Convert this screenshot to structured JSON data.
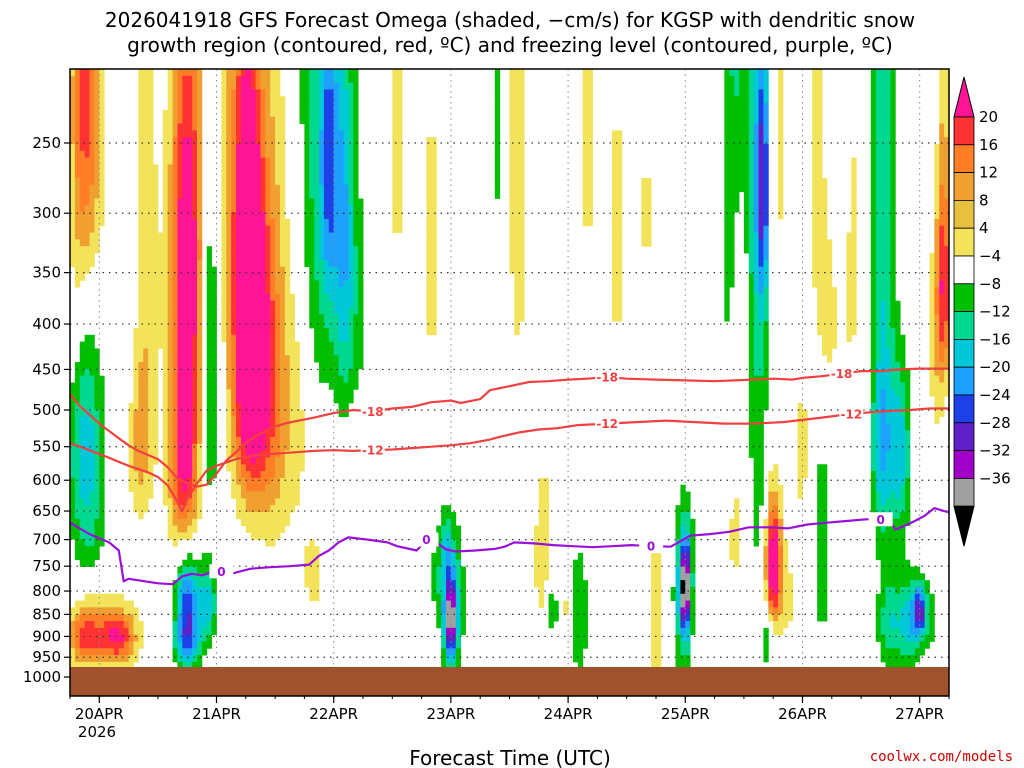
{
  "chart_data": {
    "type": "heatmap",
    "title_line1": "2026041918 GFS Forecast Omega (shaded, −cm/s) for KGSP with dendritic snow",
    "title_line2": "growth region (contoured, red, ºC) and freezing level (contoured, purple, ºC)",
    "xlabel": "Forecast Time (UTC)",
    "credit": "coolwx.com/models",
    "x_range_hours": [
      0,
      180
    ],
    "x_ticks": [
      {
        "label": "20APR",
        "hour": 6
      },
      {
        "label": "21APR",
        "hour": 30
      },
      {
        "label": "22APR",
        "hour": 54
      },
      {
        "label": "23APR",
        "hour": 78
      },
      {
        "label": "24APR",
        "hour": 102
      },
      {
        "label": "25APR",
        "hour": 126
      },
      {
        "label": "26APR",
        "hour": 150
      },
      {
        "label": "27APR",
        "hour": 174
      }
    ],
    "x_year_label": "2026",
    "y_ticks": [
      "250",
      "300",
      "350",
      "400",
      "450",
      "500",
      "550",
      "600",
      "650",
      "700",
      "750",
      "800",
      "850",
      "900",
      "950",
      "1000"
    ],
    "y_range_hpa": [
      200,
      1010
    ],
    "colorbar_labels": [
      "20",
      "16",
      "12",
      "8",
      "4",
      "−4",
      "−8",
      "−12",
      "−16",
      "−20",
      "−24",
      "−28",
      "−32",
      "−36"
    ],
    "colorbar_colors": [
      "#ff1493",
      "#ff3333",
      "#ff7f27",
      "#f0a030",
      "#e8c040",
      "#f2e35a",
      "#ffffff",
      "#00bf00",
      "#00d890",
      "#00c8d8",
      "#1ea0ff",
      "#1e40e8",
      "#6020c8",
      "#a000c8",
      "#a0a0a0",
      "#000000"
    ],
    "contour_labels": {
      "t18": "-18",
      "t12": "-12",
      "t0": "0"
    },
    "contour_colors": {
      "dgz": "#f04040",
      "freezing": "#9a10d8"
    },
    "contours": {
      "dgz_minus18": [
        [
          0,
          480
        ],
        [
          2,
          495
        ],
        [
          4,
          506
        ],
        [
          6,
          518
        ],
        [
          8,
          528
        ],
        [
          10,
          538
        ],
        [
          12,
          548
        ],
        [
          14,
          556
        ],
        [
          16,
          562
        ],
        [
          18,
          568
        ],
        [
          20,
          580
        ],
        [
          22,
          597
        ],
        [
          24,
          605
        ],
        [
          26,
          610
        ],
        [
          28,
          607
        ],
        [
          30,
          590
        ],
        [
          32,
          570
        ],
        [
          34,
          558
        ],
        [
          36,
          545
        ],
        [
          38,
          535
        ],
        [
          40,
          528
        ],
        [
          42,
          522
        ],
        [
          44,
          518
        ],
        [
          46,
          515
        ],
        [
          50,
          510
        ],
        [
          54,
          504
        ],
        [
          58,
          500
        ],
        [
          62,
          502
        ],
        [
          66,
          498
        ],
        [
          70,
          496
        ],
        [
          74,
          490
        ],
        [
          78,
          488
        ],
        [
          80,
          491
        ],
        [
          84,
          486
        ],
        [
          86,
          475
        ],
        [
          90,
          470
        ],
        [
          94,
          465
        ],
        [
          98,
          464
        ],
        [
          102,
          462
        ],
        [
          106,
          461
        ],
        [
          110,
          459
        ],
        [
          114,
          461
        ],
        [
          120,
          462
        ],
        [
          126,
          463
        ],
        [
          132,
          464
        ],
        [
          136,
          463
        ],
        [
          140,
          462
        ],
        [
          144,
          461
        ],
        [
          148,
          462
        ],
        [
          150,
          460
        ],
        [
          154,
          458
        ],
        [
          158,
          455
        ],
        [
          162,
          452
        ],
        [
          166,
          452
        ],
        [
          170,
          450
        ],
        [
          174,
          449
        ],
        [
          178,
          449
        ],
        [
          180,
          449
        ]
      ],
      "dgz_minus12": [
        [
          0,
          545
        ],
        [
          4,
          555
        ],
        [
          8,
          566
        ],
        [
          12,
          578
        ],
        [
          16,
          588
        ],
        [
          18,
          595
        ],
        [
          20,
          608
        ],
        [
          22,
          635
        ],
        [
          23,
          650
        ],
        [
          24,
          630
        ],
        [
          26,
          605
        ],
        [
          28,
          585
        ],
        [
          30,
          578
        ],
        [
          34,
          568
        ],
        [
          38,
          562
        ],
        [
          42,
          560
        ],
        [
          46,
          558
        ],
        [
          50,
          556
        ],
        [
          54,
          555
        ],
        [
          58,
          556
        ],
        [
          62,
          555
        ],
        [
          66,
          554
        ],
        [
          70,
          552
        ],
        [
          74,
          550
        ],
        [
          78,
          548
        ],
        [
          82,
          545
        ],
        [
          86,
          540
        ],
        [
          88,
          536
        ],
        [
          92,
          530
        ],
        [
          96,
          526
        ],
        [
          100,
          524
        ],
        [
          104,
          520
        ],
        [
          110,
          518
        ],
        [
          116,
          516
        ],
        [
          122,
          514
        ],
        [
          128,
          516
        ],
        [
          134,
          518
        ],
        [
          140,
          518
        ],
        [
          146,
          516
        ],
        [
          150,
          513
        ],
        [
          154,
          510
        ],
        [
          160,
          505
        ],
        [
          166,
          502
        ],
        [
          172,
          500
        ],
        [
          176,
          498
        ],
        [
          180,
          498
        ]
      ],
      "freezing_0": [
        [
          0,
          670
        ],
        [
          4,
          690
        ],
        [
          8,
          705
        ],
        [
          10,
          720
        ],
        [
          11,
          780
        ],
        [
          12,
          775
        ],
        [
          14,
          778
        ],
        [
          18,
          784
        ],
        [
          21,
          786
        ],
        [
          23,
          770
        ],
        [
          25,
          765
        ],
        [
          27,
          768
        ],
        [
          29,
          762
        ],
        [
          31,
          760
        ],
        [
          33,
          765
        ],
        [
          37,
          755
        ],
        [
          41,
          752
        ],
        [
          45,
          750
        ],
        [
          49,
          747
        ],
        [
          51,
          730
        ],
        [
          53,
          720
        ],
        [
          55,
          705
        ],
        [
          57,
          696
        ],
        [
          61,
          700
        ],
        [
          65,
          705
        ],
        [
          67,
          712
        ],
        [
          71,
          720
        ],
        [
          73,
          700
        ],
        [
          75,
          705
        ],
        [
          77,
          718
        ],
        [
          79,
          722
        ],
        [
          83,
          720
        ],
        [
          87,
          717
        ],
        [
          89,
          713
        ],
        [
          91,
          705
        ],
        [
          95,
          707
        ],
        [
          99,
          710
        ],
        [
          103,
          712
        ],
        [
          107,
          714
        ],
        [
          111,
          712
        ],
        [
          115,
          710
        ],
        [
          119,
          712
        ],
        [
          123,
          713
        ],
        [
          125,
          703
        ],
        [
          127,
          693
        ],
        [
          131,
          690
        ],
        [
          135,
          686
        ],
        [
          139,
          678
        ],
        [
          143,
          678
        ],
        [
          147,
          680
        ],
        [
          151,
          673
        ],
        [
          155,
          670
        ],
        [
          159,
          667
        ],
        [
          163,
          664
        ],
        [
          166,
          664
        ],
        [
          168,
          668
        ],
        [
          169,
          682
        ],
        [
          171,
          675
        ],
        [
          173,
          667
        ],
        [
          175,
          658
        ],
        [
          177,
          645
        ],
        [
          179,
          650
        ],
        [
          180,
          652
        ]
      ]
    },
    "omega_blobs": [
      {
        "t": 3,
        "p": 200,
        "wt": 1.6,
        "hp": 120,
        "v": 14
      },
      {
        "t": 5,
        "p": 230,
        "wt": 2.0,
        "hp": 110,
        "v": 8
      },
      {
        "t": 1,
        "p": 330,
        "wt": 1.2,
        "hp": 140,
        "v": 6
      },
      {
        "t": 3,
        "p": 480,
        "wt": 2.6,
        "hp": 120,
        "v": -11
      },
      {
        "t": 3,
        "p": 580,
        "wt": 2.6,
        "hp": 60,
        "v": -7
      },
      {
        "t": 4,
        "p": 700,
        "wt": 2.4,
        "hp": 60,
        "v": -6
      },
      {
        "t": 3,
        "p": 905,
        "wt": 2.4,
        "hp": 50,
        "v": 13
      },
      {
        "t": 10,
        "p": 905,
        "wt": 2.6,
        "hp": 45,
        "v": 17
      },
      {
        "t": 6,
        "p": 880,
        "wt": 4.0,
        "hp": 60,
        "v": 7
      },
      {
        "t": 12,
        "p": 330,
        "wt": 1.3,
        "hp": 120,
        "v": -6
      },
      {
        "t": 15,
        "p": 380,
        "wt": 2.2,
        "hp": 200,
        "v": 8
      },
      {
        "t": 14,
        "p": 550,
        "wt": 1.8,
        "hp": 60,
        "v": 6
      },
      {
        "t": 24,
        "p": 300,
        "wt": 2.4,
        "hp": 120,
        "v": 16
      },
      {
        "t": 24,
        "p": 470,
        "wt": 2.4,
        "hp": 160,
        "v": 16
      },
      {
        "t": 23,
        "p": 600,
        "wt": 2.0,
        "hp": 80,
        "v": 10
      },
      {
        "t": 24,
        "p": 830,
        "wt": 1.6,
        "hp": 80,
        "v": -24
      },
      {
        "t": 24,
        "p": 920,
        "wt": 2.0,
        "hp": 40,
        "v": -10
      },
      {
        "t": 28,
        "p": 830,
        "wt": 1.4,
        "hp": 60,
        "v": -14
      },
      {
        "t": 28.5,
        "p": 420,
        "wt": 1.4,
        "hp": 160,
        "v": -12
      },
      {
        "t": 31,
        "p": 220,
        "wt": 2.2,
        "hp": 120,
        "v": 4.5
      },
      {
        "t": 36,
        "p": 260,
        "wt": 2.0,
        "hp": 100,
        "v": 12
      },
      {
        "t": 37,
        "p": 350,
        "wt": 2.6,
        "hp": 120,
        "v": 20
      },
      {
        "t": 37,
        "p": 480,
        "wt": 2.6,
        "hp": 100,
        "v": 16
      },
      {
        "t": 40,
        "p": 520,
        "wt": 4.0,
        "hp": 120,
        "v": 8
      },
      {
        "t": 42,
        "p": 380,
        "wt": 2.0,
        "hp": 200,
        "v": 6
      },
      {
        "t": 47,
        "p": 480,
        "wt": 2.0,
        "hp": 160,
        "v": 5
      },
      {
        "t": 50,
        "p": 260,
        "wt": 2.6,
        "hp": 180,
        "v": -9
      },
      {
        "t": 53,
        "p": 260,
        "wt": 1.3,
        "hp": 80,
        "v": -17
      },
      {
        "t": 56,
        "p": 300,
        "wt": 1.5,
        "hp": 120,
        "v": -13
      },
      {
        "t": 58,
        "p": 400,
        "wt": 2.4,
        "hp": 120,
        "v": -6
      },
      {
        "t": 50,
        "p": 760,
        "wt": 1.6,
        "hp": 60,
        "v": 6
      },
      {
        "t": 58,
        "p": 580,
        "wt": 2.0,
        "hp": 80,
        "v": 5
      },
      {
        "t": 67,
        "p": 250,
        "wt": 1.4,
        "hp": 120,
        "v": 5
      },
      {
        "t": 74,
        "p": 330,
        "wt": 1.2,
        "hp": 160,
        "v": 5
      },
      {
        "t": 78,
        "p": 810,
        "wt": 2.8,
        "hp": 110,
        "v": -12
      },
      {
        "t": 78,
        "p": 860,
        "wt": 0.9,
        "hp": 60,
        "v": -28
      },
      {
        "t": 77,
        "p": 720,
        "wt": 0.8,
        "hp": 40,
        "v": -8
      },
      {
        "t": 82,
        "p": 800,
        "wt": 1.6,
        "hp": 140,
        "v": 5
      },
      {
        "t": 74,
        "p": 900,
        "wt": 1.3,
        "hp": 50,
        "v": 6
      },
      {
        "t": 88,
        "p": 240,
        "wt": 1.0,
        "hp": 100,
        "v": -6
      },
      {
        "t": 90,
        "p": 200,
        "wt": 1.4,
        "hp": 100,
        "v": 5
      },
      {
        "t": 92,
        "p": 300,
        "wt": 1.4,
        "hp": 160,
        "v": 5
      },
      {
        "t": 97,
        "p": 740,
        "wt": 1.6,
        "hp": 140,
        "v": 7
      },
      {
        "t": 99,
        "p": 840,
        "wt": 1.2,
        "hp": 60,
        "v": -12
      },
      {
        "t": 101,
        "p": 840,
        "wt": 1.5,
        "hp": 70,
        "v": 8
      },
      {
        "t": 104,
        "p": 850,
        "wt": 1.5,
        "hp": 100,
        "v": -9
      },
      {
        "t": 106,
        "p": 250,
        "wt": 1.2,
        "hp": 120,
        "v": 5
      },
      {
        "t": 112,
        "p": 320,
        "wt": 1.4,
        "hp": 140,
        "v": 5
      },
      {
        "t": 118,
        "p": 300,
        "wt": 1.2,
        "hp": 100,
        "v": 4.5
      },
      {
        "t": 120,
        "p": 850,
        "wt": 1.2,
        "hp": 120,
        "v": 8
      },
      {
        "t": 126,
        "p": 810,
        "wt": 1.6,
        "hp": 130,
        "v": -14
      },
      {
        "t": 126,
        "p": 790,
        "wt": 0.8,
        "hp": 60,
        "v": -30
      },
      {
        "t": 128,
        "p": 820,
        "wt": 1.2,
        "hp": 90,
        "v": 7
      },
      {
        "t": 136,
        "p": 650,
        "wt": 1.2,
        "hp": 200,
        "v": 5
      },
      {
        "t": 135,
        "p": 320,
        "wt": 1.4,
        "hp": 160,
        "v": -6
      },
      {
        "t": 137,
        "p": 160,
        "wt": 1.5,
        "hp": 80,
        "v": -8
      },
      {
        "t": 141,
        "p": 500,
        "wt": 1.5,
        "hp": 220,
        "v": -7
      },
      {
        "t": 141,
        "p": 260,
        "wt": 1.5,
        "hp": 100,
        "v": -11
      },
      {
        "t": 142,
        "p": 280,
        "wt": 0.8,
        "hp": 60,
        "v": -17
      },
      {
        "t": 145,
        "p": 250,
        "wt": 1.6,
        "hp": 140,
        "v": 4.5
      },
      {
        "t": 144,
        "p": 720,
        "wt": 1.2,
        "hp": 100,
        "v": 10
      },
      {
        "t": 144,
        "p": 760,
        "wt": 1.1,
        "hp": 80,
        "v": 18
      },
      {
        "t": 143,
        "p": 900,
        "wt": 1.2,
        "hp": 60,
        "v": -7
      },
      {
        "t": 147,
        "p": 820,
        "wt": 1.5,
        "hp": 80,
        "v": 5
      },
      {
        "t": 150,
        "p": 560,
        "wt": 1.5,
        "hp": 120,
        "v": 5
      },
      {
        "t": 153,
        "p": 250,
        "wt": 1.5,
        "hp": 120,
        "v": 5
      },
      {
        "t": 155,
        "p": 400,
        "wt": 1.6,
        "hp": 80,
        "v": 6
      },
      {
        "t": 154,
        "p": 700,
        "wt": 1.6,
        "hp": 200,
        "v": -6
      },
      {
        "t": 160,
        "p": 300,
        "wt": 2.0,
        "hp": 180,
        "v": 5
      },
      {
        "t": 158,
        "p": 180,
        "wt": 1.4,
        "hp": 80,
        "v": -6
      },
      {
        "t": 166,
        "p": 220,
        "wt": 1.4,
        "hp": 120,
        "v": -7
      },
      {
        "t": 167,
        "p": 400,
        "wt": 1.6,
        "hp": 220,
        "v": -7
      },
      {
        "t": 166,
        "p": 550,
        "wt": 1.5,
        "hp": 100,
        "v": -12
      },
      {
        "t": 170,
        "p": 560,
        "wt": 1.5,
        "hp": 90,
        "v": -14
      },
      {
        "t": 168,
        "p": 870,
        "wt": 1.8,
        "hp": 70,
        "v": -11
      },
      {
        "t": 172,
        "p": 870,
        "wt": 1.6,
        "hp": 70,
        "v": -14
      },
      {
        "t": 174,
        "p": 840,
        "wt": 0.9,
        "hp": 40,
        "v": -22
      },
      {
        "t": 177,
        "p": 250,
        "wt": 1.0,
        "hp": 140,
        "v": -8
      },
      {
        "t": 178,
        "p": 300,
        "wt": 1.8,
        "hp": 140,
        "v": 9
      },
      {
        "t": 179,
        "p": 370,
        "wt": 1.2,
        "hp": 60,
        "v": 12
      },
      {
        "t": 178,
        "p": 450,
        "wt": 1.6,
        "hp": 150,
        "v": 6
      },
      {
        "t": 179,
        "p": 600,
        "wt": 1.4,
        "hp": 150,
        "v": -6
      },
      {
        "t": 176,
        "p": 860,
        "wt": 1.2,
        "hp": 60,
        "v": -6
      }
    ]
  }
}
